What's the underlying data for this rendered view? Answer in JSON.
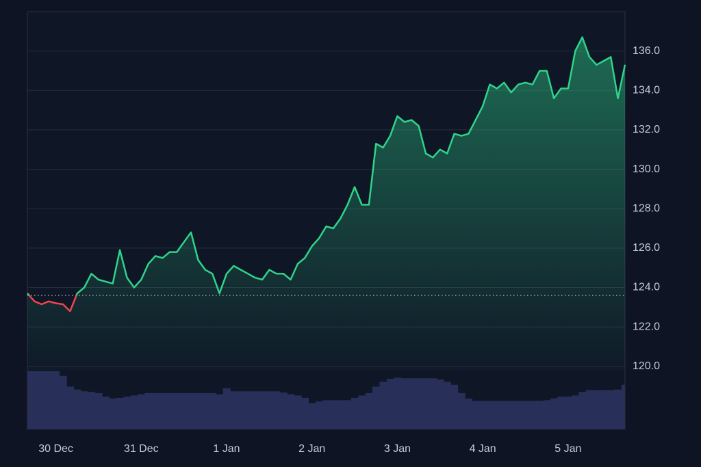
{
  "chart_data": {
    "type": "line",
    "categories": [
      null,
      null,
      null,
      null,
      "30 Dec",
      null,
      null,
      null,
      null,
      null,
      null,
      null,
      null,
      null,
      null,
      null,
      "31 Dec",
      null,
      null,
      null,
      null,
      null,
      null,
      null,
      null,
      null,
      null,
      null,
      "1 Jan",
      null,
      null,
      null,
      null,
      null,
      null,
      null,
      null,
      null,
      null,
      null,
      "2 Jan",
      null,
      null,
      null,
      null,
      null,
      null,
      null,
      null,
      null,
      null,
      null,
      "3 Jan",
      null,
      null,
      null,
      null,
      null,
      null,
      null,
      null,
      null,
      null,
      null,
      "4 Jan",
      null,
      null,
      null,
      null,
      null,
      null,
      null,
      null,
      null,
      null,
      null,
      "5 Jan",
      null,
      null,
      null,
      null,
      null,
      null,
      null,
      null
    ],
    "values": [
      123.7,
      123.3,
      123.15,
      123.3,
      123.2,
      123.15,
      122.8,
      123.7,
      124.0,
      124.7,
      124.4,
      124.3,
      124.2,
      125.9,
      124.5,
      124.0,
      124.4,
      125.2,
      125.6,
      125.5,
      125.8,
      125.8,
      126.3,
      126.8,
      125.4,
      124.9,
      124.7,
      123.7,
      124.7,
      125.1,
      124.9,
      124.7,
      124.5,
      124.4,
      124.9,
      124.7,
      124.7,
      124.4,
      125.2,
      125.5,
      126.1,
      126.5,
      127.1,
      127.0,
      127.5,
      128.2,
      129.1,
      128.2,
      128.2,
      131.3,
      131.1,
      131.7,
      132.7,
      132.4,
      132.5,
      132.2,
      130.8,
      130.6,
      131.0,
      130.8,
      131.8,
      131.7,
      131.8,
      132.5,
      133.2,
      134.3,
      134.1,
      134.4,
      133.9,
      134.3,
      134.4,
      134.3,
      135.0,
      135.0,
      133.6,
      134.1,
      134.1,
      136.0,
      136.7,
      135.7,
      135.3,
      135.5,
      135.7,
      133.6,
      135.3
    ],
    "volume": [
      98,
      98,
      98,
      98,
      98,
      90,
      72,
      67,
      64,
      63,
      61,
      55,
      52,
      53,
      55,
      57,
      59,
      61,
      61,
      61,
      61,
      61,
      61,
      61,
      61,
      61,
      61,
      59,
      69,
      64,
      64,
      64,
      64,
      64,
      64,
      64,
      62,
      59,
      57,
      53,
      44,
      47,
      49,
      49,
      49,
      49,
      53,
      57,
      61,
      72,
      80,
      85,
      87,
      86,
      86,
      86,
      86,
      86,
      84,
      80,
      75,
      61,
      52,
      48,
      48,
      48,
      48,
      48,
      48,
      48,
      48,
      48,
      48,
      49,
      52,
      55,
      55,
      57,
      63,
      66,
      66,
      66,
      66,
      67,
      75
    ],
    "volume_lim": [
      0,
      100
    ],
    "baseline": 123.6,
    "up_color": "#2fd48a",
    "down_color": "#f0454c",
    "volume_color": "#28305a",
    "ylim": [
      116.8,
      138.0
    ],
    "yticks": [
      {
        "value": 120,
        "label": "120.0"
      },
      {
        "value": 122,
        "label": "122.0"
      },
      {
        "value": 124,
        "label": "124.0"
      },
      {
        "value": 126,
        "label": "126.0"
      },
      {
        "value": 128,
        "label": "128.0"
      },
      {
        "value": 130,
        "label": "130.0"
      },
      {
        "value": 132,
        "label": "132.0"
      },
      {
        "value": 134,
        "label": "134.0"
      },
      {
        "value": 136,
        "label": "136.0"
      }
    ],
    "grid": true
  }
}
